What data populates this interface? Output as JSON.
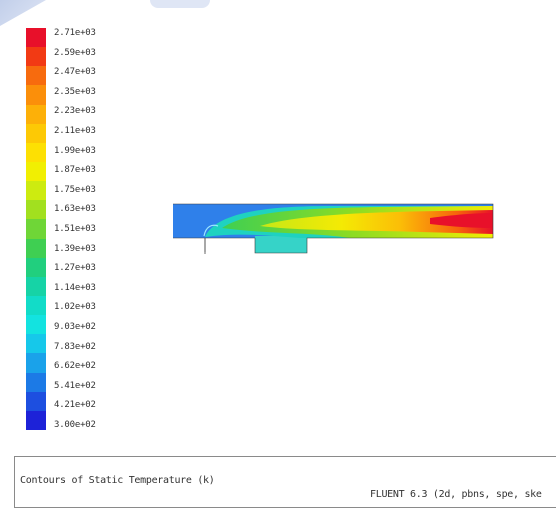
{
  "legend": {
    "ticks": [
      {
        "label": "2.71e+03",
        "color": "#e8102a"
      },
      {
        "label": "2.59e+03",
        "color": "#f23a14"
      },
      {
        "label": "2.47e+03",
        "color": "#f76b0e"
      },
      {
        "label": "2.35e+03",
        "color": "#fb8f0a"
      },
      {
        "label": "2.23e+03",
        "color": "#fdb008"
      },
      {
        "label": "2.11e+03",
        "color": "#fdc905"
      },
      {
        "label": "1.99e+03",
        "color": "#fde003"
      },
      {
        "label": "1.87e+03",
        "color": "#f1ef02"
      },
      {
        "label": "1.75e+03",
        "color": "#cdeb10"
      },
      {
        "label": "1.63e+03",
        "color": "#a2e01f"
      },
      {
        "label": "1.51e+03",
        "color": "#6fd637"
      },
      {
        "label": "1.39e+03",
        "color": "#3fcf52"
      },
      {
        "label": "1.27e+03",
        "color": "#21cf7e"
      },
      {
        "label": "1.14e+03",
        "color": "#16d3a6"
      },
      {
        "label": "1.02e+03",
        "color": "#12dcc8"
      },
      {
        "label": "9.03e+02",
        "color": "#13e3e0"
      },
      {
        "label": "7.83e+02",
        "color": "#16c8ea"
      },
      {
        "label": "6.62e+02",
        "color": "#1aa2ea"
      },
      {
        "label": "5.41e+02",
        "color": "#1c7ae6"
      },
      {
        "label": "4.21e+02",
        "color": "#1d4fe0"
      },
      {
        "label": "3.00e+02",
        "color": "#1d22d8"
      }
    ]
  },
  "colors": {
    "cold": "#2f80ea",
    "hot": "#e8102a",
    "cavity": "#36d3c8"
  },
  "caption": {
    "title": "Contours of Static Temperature (k)",
    "solver": "FLUENT 6.3 (2d, pbns, spe, ske"
  }
}
